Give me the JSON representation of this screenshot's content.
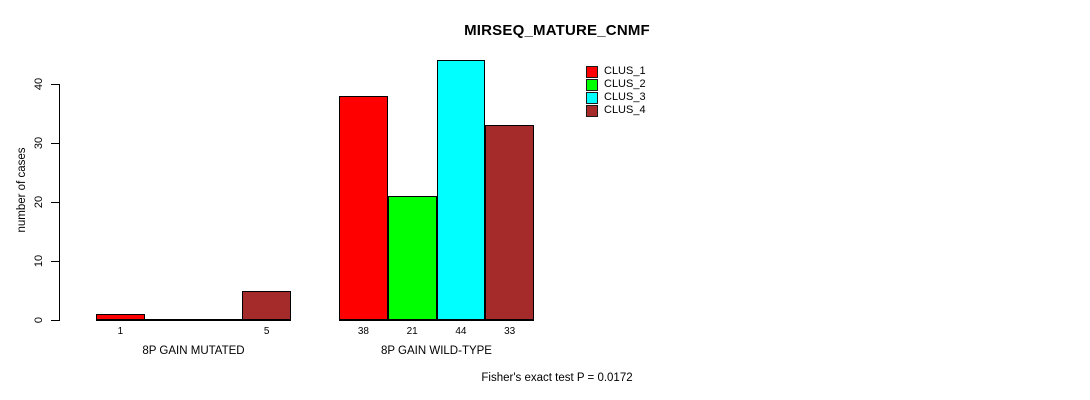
{
  "title": "MIRSEQ_MATURE_CNMF",
  "y_axis_label": "number of cases",
  "footer_note": "Fisher's exact test P = 0.0172",
  "chart_data": {
    "type": "bar",
    "title": "MIRSEQ_MATURE_CNMF",
    "xlabel": "",
    "ylabel": "number of cases",
    "categories": [
      "8P GAIN MUTATED",
      "8P GAIN WILD-TYPE"
    ],
    "series": [
      {
        "name": "CLUS_1",
        "color": "#FF0000",
        "values": [
          1,
          38
        ]
      },
      {
        "name": "CLUS_2",
        "color": "#00FF00",
        "values": [
          0,
          21
        ]
      },
      {
        "name": "CLUS_3",
        "color": "#00FFFF",
        "values": [
          0,
          44
        ]
      },
      {
        "name": "CLUS_4",
        "color": "#A52A2A",
        "values": [
          5,
          33
        ]
      }
    ],
    "bar_value_labels_shown": [
      [
        "1",
        "",
        "",
        "5"
      ],
      [
        "38",
        "21",
        "44",
        "33"
      ]
    ],
    "yticks": [
      0,
      10,
      20,
      30,
      40
    ],
    "ylim": [
      0,
      44
    ],
    "grid": false,
    "legend": {
      "position": "inside-top-right",
      "entries": [
        "CLUS_1",
        "CLUS_2",
        "CLUS_3",
        "CLUS_4"
      ],
      "colors": [
        "#FF0000",
        "#00FF00",
        "#00FFFF",
        "#A52A2A"
      ]
    },
    "annotation": "Fisher's exact test P = 0.0172"
  }
}
